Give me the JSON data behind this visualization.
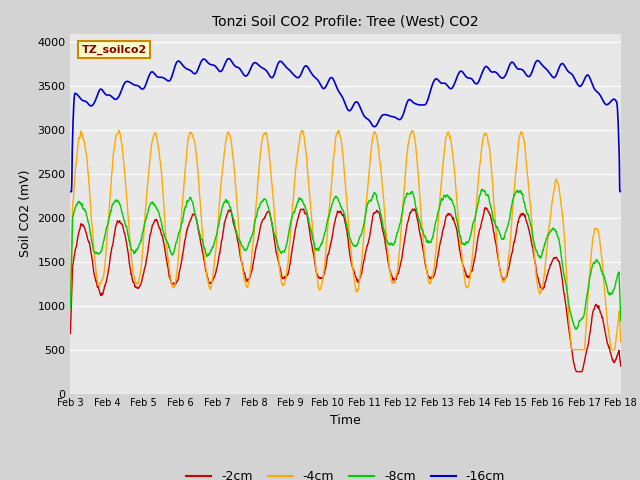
{
  "title": "Tonzi Soil CO2 Profile: Tree (West) CO2",
  "xlabel": "Time",
  "ylabel": "Soil CO2 (mV)",
  "legend_label": "TZ_soilco2",
  "series_labels": [
    "-2cm",
    "-4cm",
    "-8cm",
    "-16cm"
  ],
  "series_colors": [
    "#cc0000",
    "#ffaa00",
    "#00cc00",
    "#0000cc"
  ],
  "x_tick_labels": [
    "Feb 3",
    "Feb 4",
    "Feb 5",
    "Feb 6",
    "Feb 7",
    "Feb 8",
    "Feb 9",
    "Feb 10",
    "Feb 11",
    "Feb 12",
    "Feb 13",
    "Feb 14",
    "Feb 15",
    "Feb 16",
    "Feb 17",
    "Feb 18"
  ],
  "ylim": [
    0,
    4100
  ],
  "yticks": [
    0,
    500,
    1000,
    1500,
    2000,
    2500,
    3000,
    3500,
    4000
  ],
  "background_color": "#d3d3d3",
  "plot_bg_color": "#e8e8e8"
}
